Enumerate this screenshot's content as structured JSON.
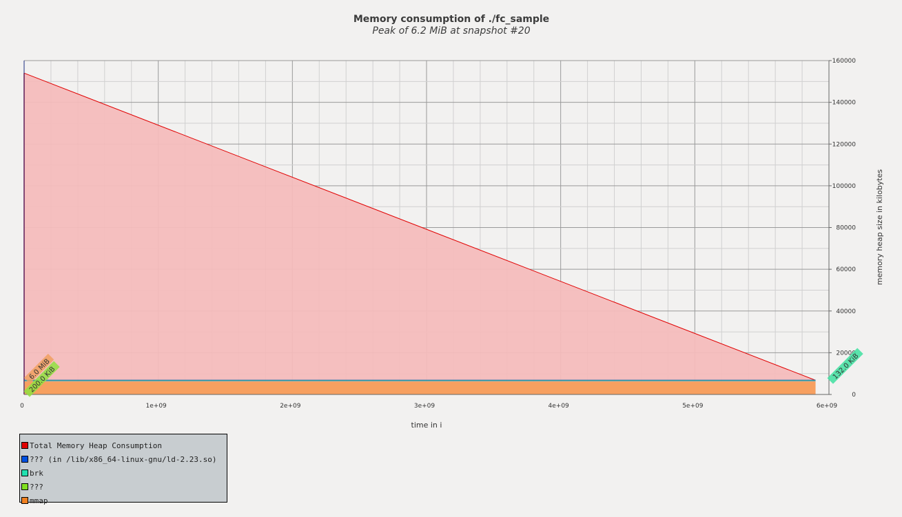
{
  "chart_data": {
    "type": "area",
    "title": "Memory consumption of ./fc_sample",
    "subtitle": "Peak of 6.2 MiB at snapshot #20",
    "xlabel": "time in i",
    "ylabel": "memory heap size in kilobytes",
    "xlim": [
      0,
      6000000000
    ],
    "ylim": [
      0,
      160000
    ],
    "x_ticks": [
      "0",
      "1e+09",
      "2e+09",
      "3e+09",
      "4e+09",
      "5e+09",
      "6e+09"
    ],
    "y_ticks": [
      "0",
      "20000",
      "40000",
      "60000",
      "80000",
      "100000",
      "120000",
      "140000",
      "160000"
    ],
    "grid": true,
    "legend_position": "bottom-left",
    "series": [
      {
        "name": "Total Memory Heap Consumption",
        "color": "#e00000",
        "fill": "#f4bcbc",
        "x": [
          0,
          5900000000
        ],
        "y": [
          154000,
          6800
        ]
      },
      {
        "name": "??? (in /lib/x86_64-linux-gnu/ld-2.23.so)",
        "color": "#0050e0",
        "x": [
          0,
          5900000000
        ],
        "y": [
          6800,
          6800
        ]
      },
      {
        "name": "brk",
        "color": "#20e0b0",
        "x": [
          0,
          5900000000
        ],
        "y": [
          6600,
          6600
        ]
      },
      {
        "name": "???",
        "color": "#80e020",
        "x": [
          0,
          5900000000
        ],
        "y": [
          6400,
          6400
        ]
      },
      {
        "name": "mmap",
        "color": "#f08020",
        "fill": "#f7a060",
        "x": [
          0,
          5900000000
        ],
        "y": [
          6200,
          6200
        ]
      }
    ],
    "annotations": [
      {
        "text": "6.0 MiB",
        "color": "#f0a060"
      },
      {
        "text": "200.0 KiB",
        "color": "#90e040"
      },
      {
        "text": "132.0 KiB",
        "color": "#40e0a0"
      }
    ]
  }
}
